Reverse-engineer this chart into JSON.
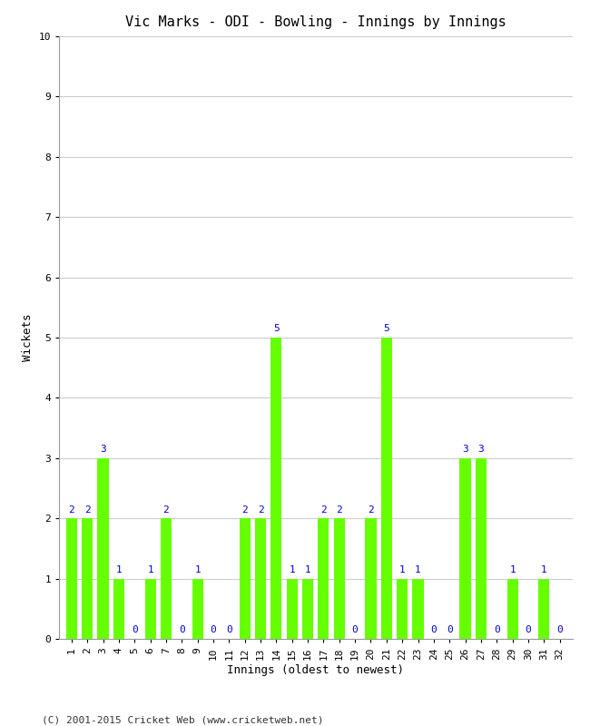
{
  "title": "Vic Marks - ODI - Bowling - Innings by Innings",
  "xlabel": "Innings (oldest to newest)",
  "ylabel": "Wickets",
  "innings": [
    1,
    2,
    3,
    4,
    5,
    6,
    7,
    8,
    9,
    10,
    11,
    12,
    13,
    14,
    15,
    16,
    17,
    18,
    19,
    20,
    21,
    22,
    23,
    24,
    25,
    26,
    27,
    28,
    29,
    30,
    31,
    32
  ],
  "wickets": [
    2,
    2,
    3,
    1,
    0,
    1,
    2,
    0,
    1,
    0,
    0,
    2,
    2,
    5,
    1,
    1,
    2,
    2,
    0,
    2,
    5,
    1,
    1,
    0,
    0,
    3,
    3,
    0,
    1,
    0,
    1,
    0
  ],
  "bar_color": "#66ff00",
  "label_color": "#0000cc",
  "background_color": "#ffffff",
  "ylim": [
    0,
    10
  ],
  "yticks": [
    0,
    1,
    2,
    3,
    4,
    5,
    6,
    7,
    8,
    9,
    10
  ],
  "grid_color": "#cccccc",
  "title_fontsize": 11,
  "axis_label_fontsize": 9,
  "tick_fontsize": 8,
  "value_label_fontsize": 8,
  "footer": "(C) 2001-2015 Cricket Web (www.cricketweb.net)"
}
